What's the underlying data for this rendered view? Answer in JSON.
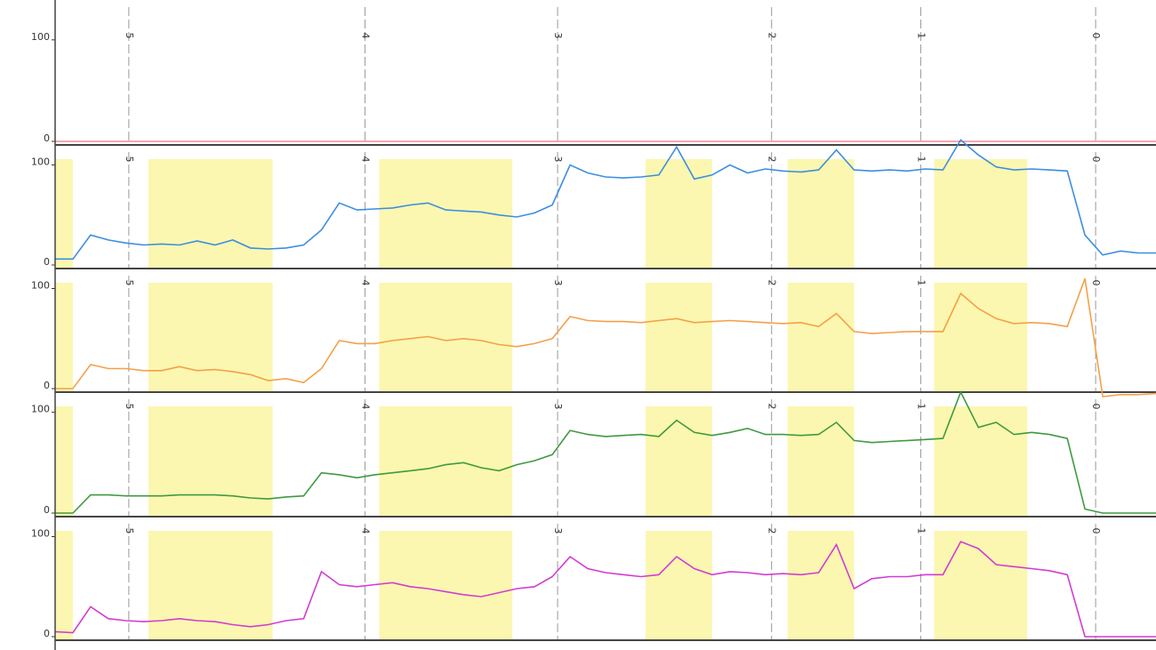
{
  "chart_data": [
    {
      "type": "line",
      "ylim": [
        0,
        120
      ],
      "yticks": [
        0,
        100
      ],
      "xlim": [
        0,
        124
      ],
      "xticks": [
        {
          "value": 8.3,
          "label": "5"
        },
        {
          "value": 34.9,
          "label": "4"
        },
        {
          "value": 56.6,
          "label": "3"
        },
        {
          "value": 80.7,
          "label": "2"
        },
        {
          "value": 97.5,
          "label": "1"
        },
        {
          "value": 117.2,
          "label": "0"
        }
      ],
      "x": [
        0,
        2,
        4,
        6,
        8,
        10,
        12,
        14,
        16,
        18,
        20,
        22,
        24,
        26,
        28,
        30,
        32,
        34,
        36,
        38,
        40,
        42,
        44,
        46,
        48,
        50,
        52,
        54,
        56,
        58,
        60,
        62,
        64,
        66,
        68,
        70,
        72,
        74,
        76,
        78,
        80,
        82,
        84,
        86,
        88,
        90,
        92,
        94,
        96,
        98,
        100,
        102,
        104,
        106,
        108,
        110,
        112,
        114,
        116,
        118,
        120,
        122,
        124
      ],
      "series": [
        {
          "color": "#f4899a",
          "values": [
            0,
            0,
            0,
            0,
            0,
            0,
            0,
            0,
            0,
            0,
            0,
            0,
            0,
            0,
            0,
            0,
            0,
            0,
            0,
            0,
            0,
            0,
            0,
            0,
            0,
            0,
            0,
            0,
            0,
            0,
            0,
            0,
            0,
            0,
            0,
            0,
            0,
            0,
            0,
            0,
            0,
            0,
            0,
            0,
            0,
            0,
            0,
            0,
            0,
            0,
            0,
            0,
            0,
            0,
            0,
            0,
            0,
            0,
            0,
            0,
            0,
            0,
            0
          ]
        }
      ]
    },
    {
      "type": "line",
      "ylim": [
        0,
        120
      ],
      "yticks": [
        0,
        100
      ],
      "xlim": [
        0,
        124
      ],
      "xticks": [
        {
          "value": 8.3,
          "label": "5"
        },
        {
          "value": 34.9,
          "label": "4"
        },
        {
          "value": 56.6,
          "label": "3"
        },
        {
          "value": 80.7,
          "label": "2"
        },
        {
          "value": 97.5,
          "label": "1"
        },
        {
          "value": 117.2,
          "label": "0"
        }
      ],
      "x_bands": [
        [
          0,
          2
        ],
        [
          10.5,
          24.5
        ],
        [
          36.5,
          51.5
        ],
        [
          66.5,
          74
        ],
        [
          82.5,
          90
        ],
        [
          99,
          109.5
        ]
      ],
      "x": [
        0,
        2,
        4,
        6,
        8,
        10,
        12,
        14,
        16,
        18,
        20,
        22,
        24,
        26,
        28,
        30,
        32,
        34,
        36,
        38,
        40,
        42,
        44,
        46,
        48,
        50,
        52,
        54,
        56,
        58,
        60,
        62,
        64,
        66,
        68,
        70,
        72,
        74,
        76,
        78,
        80,
        82,
        84,
        86,
        88,
        90,
        92,
        94,
        96,
        98,
        100,
        102,
        104,
        106,
        108,
        110,
        112,
        114,
        116,
        118,
        120,
        122,
        124
      ],
      "series": [
        {
          "color": "#3d8ee0",
          "values": [
            6,
            6,
            30,
            25,
            22,
            20,
            21,
            20,
            24,
            20,
            25,
            17,
            16,
            17,
            20,
            35,
            62,
            55,
            56,
            57,
            60,
            62,
            55,
            54,
            53,
            50,
            48,
            52,
            60,
            100,
            92,
            88,
            87,
            88,
            90,
            118,
            86,
            90,
            100,
            92,
            96,
            94,
            93,
            95,
            115,
            95,
            94,
            95,
            94,
            96,
            95,
            125,
            110,
            98,
            95,
            96,
            95,
            94,
            30,
            10,
            14,
            12,
            12
          ]
        }
      ]
    },
    {
      "type": "line",
      "ylim": [
        0,
        120
      ],
      "yticks": [
        0,
        100
      ],
      "xlim": [
        0,
        124
      ],
      "xticks": [
        {
          "value": 8.3,
          "label": "5"
        },
        {
          "value": 34.9,
          "label": "4"
        },
        {
          "value": 56.6,
          "label": "3"
        },
        {
          "value": 80.7,
          "label": "2"
        },
        {
          "value": 97.5,
          "label": "1"
        },
        {
          "value": 117.2,
          "label": "0"
        }
      ],
      "x_bands": [
        [
          0,
          2
        ],
        [
          10.5,
          24.5
        ],
        [
          36.5,
          51.5
        ],
        [
          66.5,
          74
        ],
        [
          82.5,
          90
        ],
        [
          99,
          109.5
        ]
      ],
      "x": [
        0,
        2,
        4,
        6,
        8,
        10,
        12,
        14,
        16,
        18,
        20,
        22,
        24,
        26,
        28,
        30,
        32,
        34,
        36,
        38,
        40,
        42,
        44,
        46,
        48,
        50,
        52,
        54,
        56,
        58,
        60,
        62,
        64,
        66,
        68,
        70,
        72,
        74,
        76,
        78,
        80,
        82,
        84,
        86,
        88,
        90,
        92,
        94,
        96,
        98,
        100,
        102,
        104,
        106,
        108,
        110,
        112,
        114,
        116,
        118,
        120,
        122,
        124
      ],
      "series": [
        {
          "color": "#f5a04a",
          "values": [
            0,
            0,
            24,
            20,
            20,
            18,
            18,
            22,
            18,
            19,
            17,
            14,
            8,
            10,
            6,
            20,
            48,
            45,
            45,
            48,
            50,
            52,
            48,
            50,
            48,
            44,
            42,
            45,
            50,
            72,
            68,
            67,
            67,
            66,
            68,
            70,
            66,
            67,
            68,
            67,
            66,
            65,
            66,
            62,
            75,
            57,
            55,
            56,
            57,
            57,
            57,
            95,
            80,
            70,
            65,
            66,
            65,
            62,
            110,
            -8,
            -6,
            -6,
            -5
          ]
        }
      ]
    },
    {
      "type": "line",
      "ylim": [
        0,
        120
      ],
      "yticks": [
        0,
        100
      ],
      "xlim": [
        0,
        124
      ],
      "xticks": [
        {
          "value": 8.3,
          "label": "5"
        },
        {
          "value": 34.9,
          "label": "4"
        },
        {
          "value": 56.6,
          "label": "3"
        },
        {
          "value": 80.7,
          "label": "2"
        },
        {
          "value": 97.5,
          "label": "1"
        },
        {
          "value": 117.2,
          "label": "0"
        }
      ],
      "x_bands": [
        [
          0,
          2
        ],
        [
          10.5,
          24.5
        ],
        [
          36.5,
          51.5
        ],
        [
          66.5,
          74
        ],
        [
          82.5,
          90
        ],
        [
          99,
          109.5
        ]
      ],
      "x": [
        0,
        2,
        4,
        6,
        8,
        10,
        12,
        14,
        16,
        18,
        20,
        22,
        24,
        26,
        28,
        30,
        32,
        34,
        36,
        38,
        40,
        42,
        44,
        46,
        48,
        50,
        52,
        54,
        56,
        58,
        60,
        62,
        64,
        66,
        68,
        70,
        72,
        74,
        76,
        78,
        80,
        82,
        84,
        86,
        88,
        90,
        92,
        94,
        96,
        98,
        100,
        102,
        104,
        106,
        108,
        110,
        112,
        114,
        116,
        118,
        120,
        122,
        124
      ],
      "series": [
        {
          "color": "#3f9a3f",
          "values": [
            0,
            0,
            18,
            18,
            17,
            17,
            17,
            18,
            18,
            18,
            17,
            15,
            14,
            16,
            17,
            40,
            38,
            35,
            38,
            40,
            42,
            44,
            48,
            50,
            45,
            42,
            48,
            52,
            58,
            82,
            78,
            76,
            77,
            78,
            76,
            92,
            80,
            77,
            80,
            84,
            78,
            78,
            77,
            78,
            90,
            72,
            70,
            71,
            72,
            73,
            74,
            120,
            85,
            90,
            78,
            80,
            78,
            74,
            4,
            0,
            0,
            0,
            0
          ]
        }
      ]
    },
    {
      "type": "line",
      "ylim": [
        0,
        120
      ],
      "yticks": [
        0,
        100
      ],
      "xlim": [
        0,
        124
      ],
      "xticks": [
        {
          "value": 8.3,
          "label": "5"
        },
        {
          "value": 34.9,
          "label": "4"
        },
        {
          "value": 56.6,
          "label": "3"
        },
        {
          "value": 80.7,
          "label": "2"
        },
        {
          "value": 97.5,
          "label": "1"
        },
        {
          "value": 117.2,
          "label": "0"
        }
      ],
      "x_bands": [
        [
          0,
          2
        ],
        [
          10.5,
          24.5
        ],
        [
          36.5,
          51.5
        ],
        [
          66.5,
          74
        ],
        [
          82.5,
          90
        ],
        [
          99,
          109.5
        ]
      ],
      "x": [
        0,
        2,
        4,
        6,
        8,
        10,
        12,
        14,
        16,
        18,
        20,
        22,
        24,
        26,
        28,
        30,
        32,
        34,
        36,
        38,
        40,
        42,
        44,
        46,
        48,
        50,
        52,
        54,
        56,
        58,
        60,
        62,
        64,
        66,
        68,
        70,
        72,
        74,
        76,
        78,
        80,
        82,
        84,
        86,
        88,
        90,
        92,
        94,
        96,
        98,
        100,
        102,
        104,
        106,
        108,
        110,
        112,
        114,
        116,
        118,
        120,
        122,
        124
      ],
      "series": [
        {
          "color": "#d23cd2",
          "values": [
            5,
            4,
            30,
            18,
            16,
            15,
            16,
            18,
            16,
            15,
            12,
            10,
            12,
            16,
            18,
            65,
            52,
            50,
            52,
            54,
            50,
            48,
            45,
            42,
            40,
            44,
            48,
            50,
            60,
            80,
            68,
            64,
            62,
            60,
            62,
            80,
            68,
            62,
            65,
            64,
            62,
            63,
            62,
            64,
            92,
            48,
            58,
            60,
            60,
            62,
            62,
            95,
            88,
            72,
            70,
            68,
            66,
            62,
            0,
            0,
            0,
            0,
            0
          ]
        }
      ]
    }
  ]
}
